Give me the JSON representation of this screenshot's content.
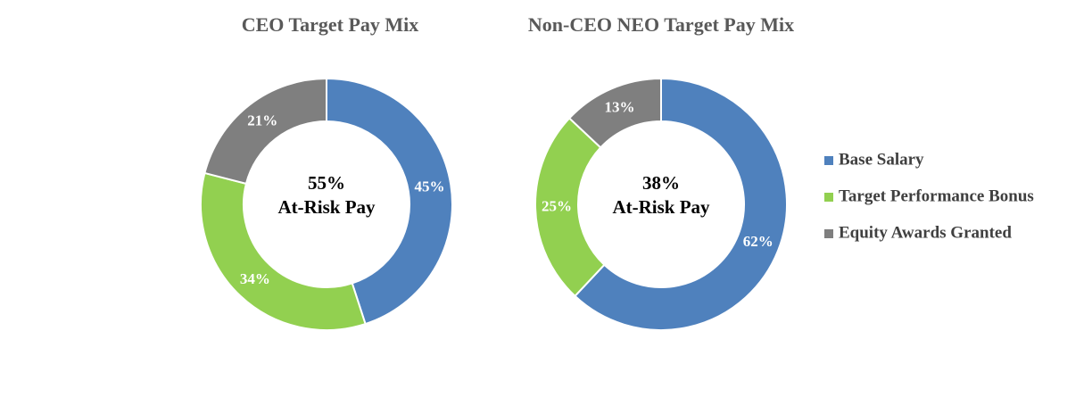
{
  "legend": {
    "labels": [
      "Base Salary",
      "Target Performance Bonus",
      "Equity Awards Granted"
    ],
    "colors": [
      "#4f81bd",
      "#92d050",
      "#7f7f7f"
    ]
  },
  "chart_data": [
    {
      "type": "donut",
      "title": "CEO Target Pay Mix",
      "values": [
        45,
        34,
        21
      ],
      "value_labels": [
        "45%",
        "34%",
        "21%"
      ],
      "center_text": [
        "55%",
        "At-Risk Pay"
      ]
    },
    {
      "type": "donut",
      "title": "Non-CEO NEO Target Pay Mix",
      "values": [
        62,
        25,
        13
      ],
      "value_labels": [
        "62%",
        "25%",
        "13%"
      ],
      "center_text": [
        "38%",
        "At-Risk Pay"
      ]
    }
  ]
}
